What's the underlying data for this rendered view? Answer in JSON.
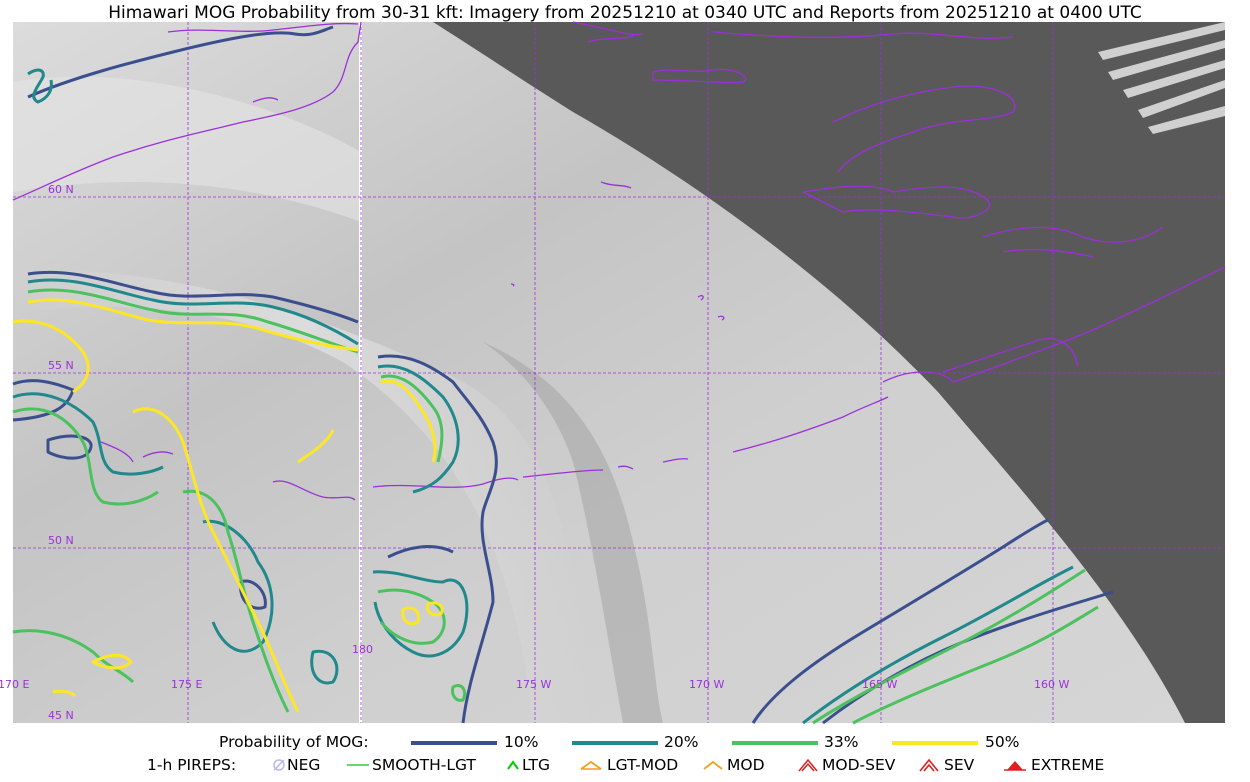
{
  "title": "Himawari MOG Probability from 30-31 kft: Imagery from 20251210 at 0340 UTC and Reports from 20251210 at 0400 UTC",
  "map": {
    "lat_labels": [
      "60 N",
      "55 N",
      "50 N",
      "45 N"
    ],
    "lon_labels": [
      "170 E",
      "175 E",
      "180",
      "175 W",
      "170 W",
      "165 W",
      "160 W"
    ],
    "colors": {
      "graticule": "#9b30d9",
      "coast": "#9b30d9",
      "space": "#595959"
    }
  },
  "legend": {
    "probability_title": "Probability of MOG:",
    "levels": [
      {
        "label": "10%",
        "color": "#3b4f8e"
      },
      {
        "label": "20%",
        "color": "#21888b"
      },
      {
        "label": "33%",
        "color": "#4cc25e"
      },
      {
        "label": "50%",
        "color": "#fde725"
      }
    ],
    "pireps_title": "1-h PIREPS:",
    "pireps": [
      {
        "label": "NEG",
        "icon": "neg-icon",
        "color": "#b8b8f0"
      },
      {
        "label": "SMOOTH-LGT",
        "icon": "smooth-light-icon",
        "color": "#33cc33"
      },
      {
        "label": "LTG",
        "icon": "light-turbulence-icon",
        "color": "#00cc00"
      },
      {
        "label": "LGT-MOD",
        "icon": "light-moderate-icon",
        "color": "#f0a020"
      },
      {
        "label": "MOD",
        "icon": "moderate-icon",
        "color": "#f0a020"
      },
      {
        "label": "MOD-SEV",
        "icon": "moderate-severe-icon",
        "color": "#e02020"
      },
      {
        "label": "SEV",
        "icon": "severe-icon",
        "color": "#e02020"
      },
      {
        "label": "EXTREME",
        "icon": "extreme-icon",
        "color": "#e02020"
      }
    ]
  }
}
